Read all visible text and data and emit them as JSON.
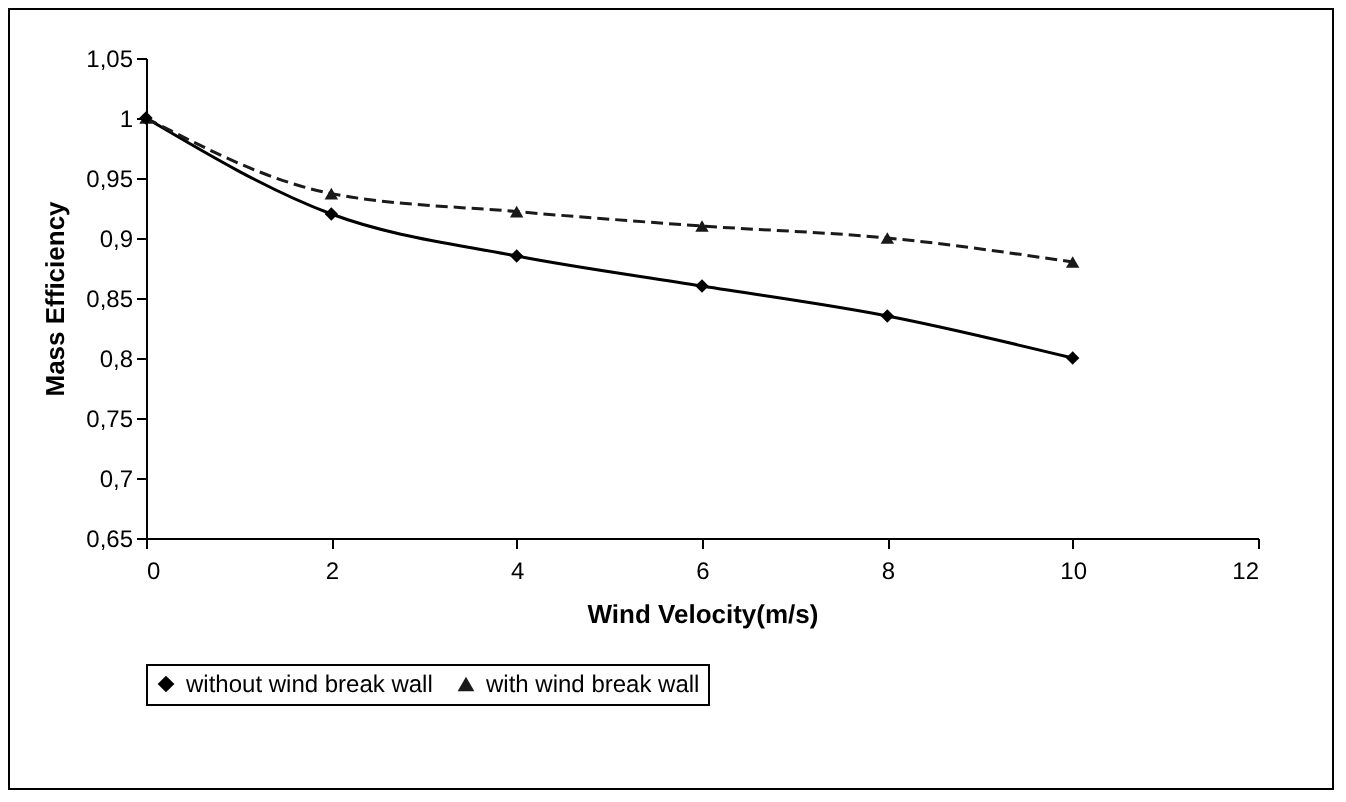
{
  "chart_data": {
    "type": "line",
    "xlabel": "Wind Velocity(m/s)",
    "ylabel": "Mass Efficiency",
    "x": [
      0,
      2,
      4,
      6,
      8,
      10
    ],
    "series": [
      {
        "name": "without wind break wall",
        "color": "#000000",
        "marker": "diamond",
        "line_style": "solid",
        "values": [
          1,
          0.92,
          0.885,
          0.86,
          0.835,
          0.8
        ]
      },
      {
        "name": "with wind break wall",
        "color": "#1a1a1a",
        "marker": "triangle",
        "line_style": "dashed",
        "values": [
          1,
          0.937,
          0.922,
          0.91,
          0.9,
          0.88
        ]
      }
    ],
    "xlim": [
      0,
      12
    ],
    "xticks": [
      0,
      2,
      4,
      6,
      8,
      10,
      12
    ],
    "ylim": [
      0.65,
      1.05
    ],
    "yticks": [
      {
        "value": 0.65,
        "label": "0,65"
      },
      {
        "value": 0.7,
        "label": "0,7"
      },
      {
        "value": 0.75,
        "label": "0,75"
      },
      {
        "value": 0.8,
        "label": "0,8"
      },
      {
        "value": 0.85,
        "label": "0,85"
      },
      {
        "value": 0.9,
        "label": "0,9"
      },
      {
        "value": 0.95,
        "label": "0,95"
      },
      {
        "value": 1,
        "label": "1"
      },
      {
        "value": 1.05,
        "label": "1,05"
      }
    ],
    "legend": "bottom",
    "grid": false
  }
}
